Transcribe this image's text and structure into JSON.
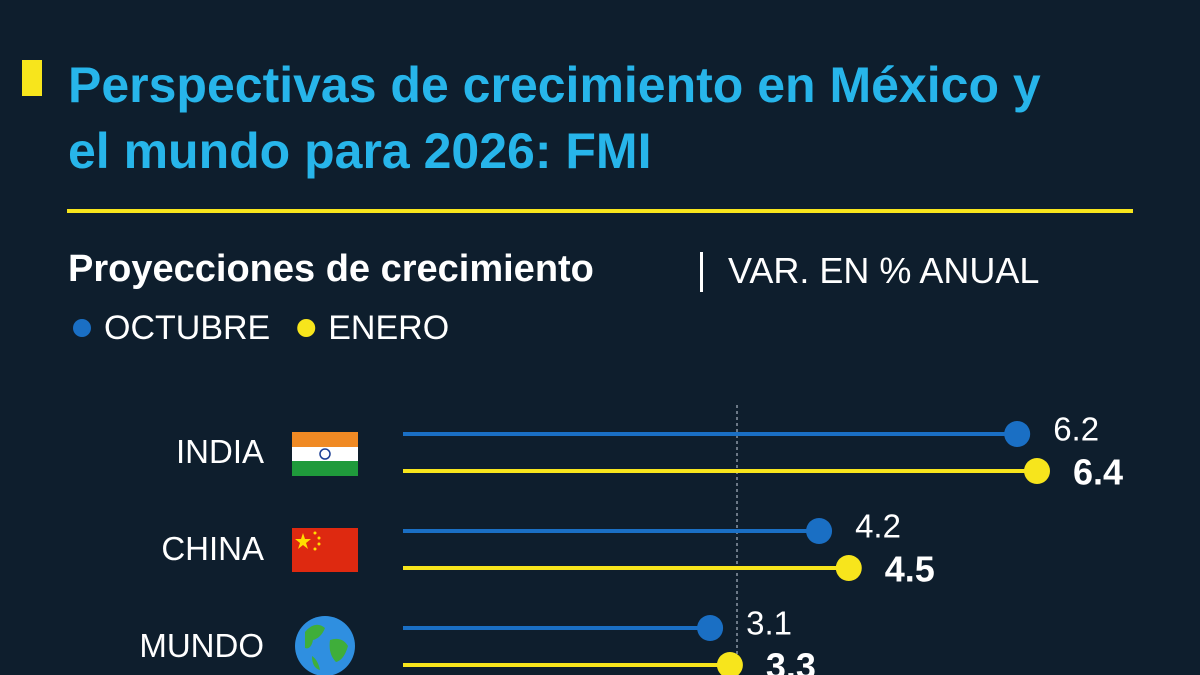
{
  "chart_data": {
    "type": "lollipop",
    "title": "Perspectivas de crecimiento en México y el mundo para 2026: FMI",
    "subtitle": "Proyecciones de crecimiento",
    "unit_label": "VAR. EN % ANUAL",
    "categories": [
      "INDIA",
      "CHINA",
      "MUNDO"
    ],
    "series": [
      {
        "name": "OCTUBRE",
        "color": "#1a6fc4",
        "values": [
          6.2,
          4.2,
          3.1
        ]
      },
      {
        "name": "ENERO",
        "color": "#f7e51c",
        "values": [
          6.4,
          4.5,
          3.3
        ]
      }
    ]
  }
}
